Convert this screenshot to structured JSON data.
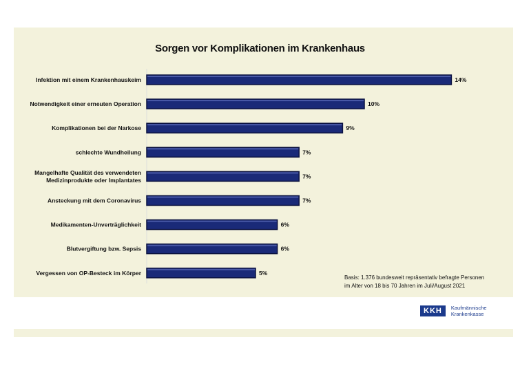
{
  "chart_data": {
    "type": "bar",
    "orientation": "horizontal",
    "title": "Sorgen vor Komplikationen im Krankenhaus",
    "categories": [
      "Infektion mit einem Krankenhauskeim",
      "Notwendigkeit einer erneuten Operation",
      "Komplikationen bei der Narkose",
      "schlechte Wundheilung",
      "Mangelhafte Qualität des verwendeten|Medizinprodukte oder Implantates",
      "Ansteckung mit dem Coronavirus",
      "Medikamenten-Unverträglichkeit",
      "Blutvergiftung bzw. Sepsis",
      "Vergessen von OP-Besteck im Körper"
    ],
    "values": [
      14,
      10,
      9,
      7,
      7,
      7,
      6,
      6,
      5
    ],
    "data_labels": [
      "14%",
      "10%",
      "9%",
      "7%",
      "7%",
      "7%",
      "6%",
      "6%",
      "5%"
    ],
    "unit": "%",
    "xlim": [
      0,
      14.5
    ],
    "grid": false,
    "bar_color": "#1a2a78"
  },
  "note": [
    "Basis: 1.376 bundesweit repräsentativ befragte Personen",
    "im Alter von 18 bis 70 Jahren im Juli/August 2021"
  ],
  "logo": {
    "mark": "KKH",
    "line1": "Kaufmännische",
    "line2": "Krankenkasse"
  }
}
